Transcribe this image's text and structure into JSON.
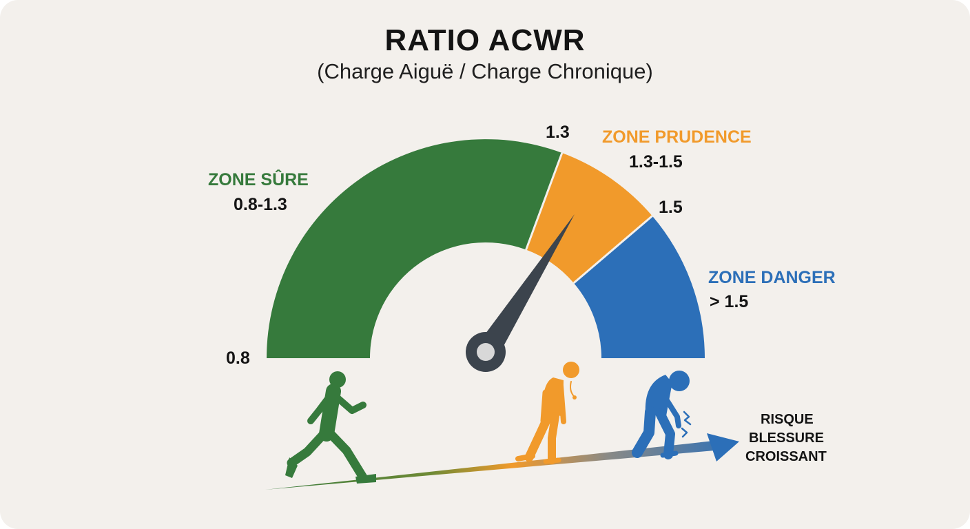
{
  "title": "RATIO ACWR",
  "subtitle": "(Charge Aiguë / Charge Chronique)",
  "gauge": {
    "min_label": "0.8",
    "tick_1": "1.3",
    "tick_2": "1.5",
    "needle_value_fraction": 0.79
  },
  "zones": {
    "safe": {
      "name": "ZONE SÛRE",
      "range": "0.8-1.3",
      "color": "#367a3c"
    },
    "caution": {
      "name": "ZONE PRUDENCE",
      "range": "1.3-1.5",
      "color": "#f19a2b"
    },
    "danger": {
      "name": "ZONE DANGER",
      "range": "> 1.5",
      "color": "#2c6fb8"
    }
  },
  "needle_color": "#3c444d",
  "risk_arrow": {
    "line1": "RISQUE",
    "line2": "BLESSURE",
    "line3": "CROISSANT"
  },
  "icons": [
    "runner-icon",
    "fatigued-person-icon",
    "injured-knee-icon"
  ]
}
